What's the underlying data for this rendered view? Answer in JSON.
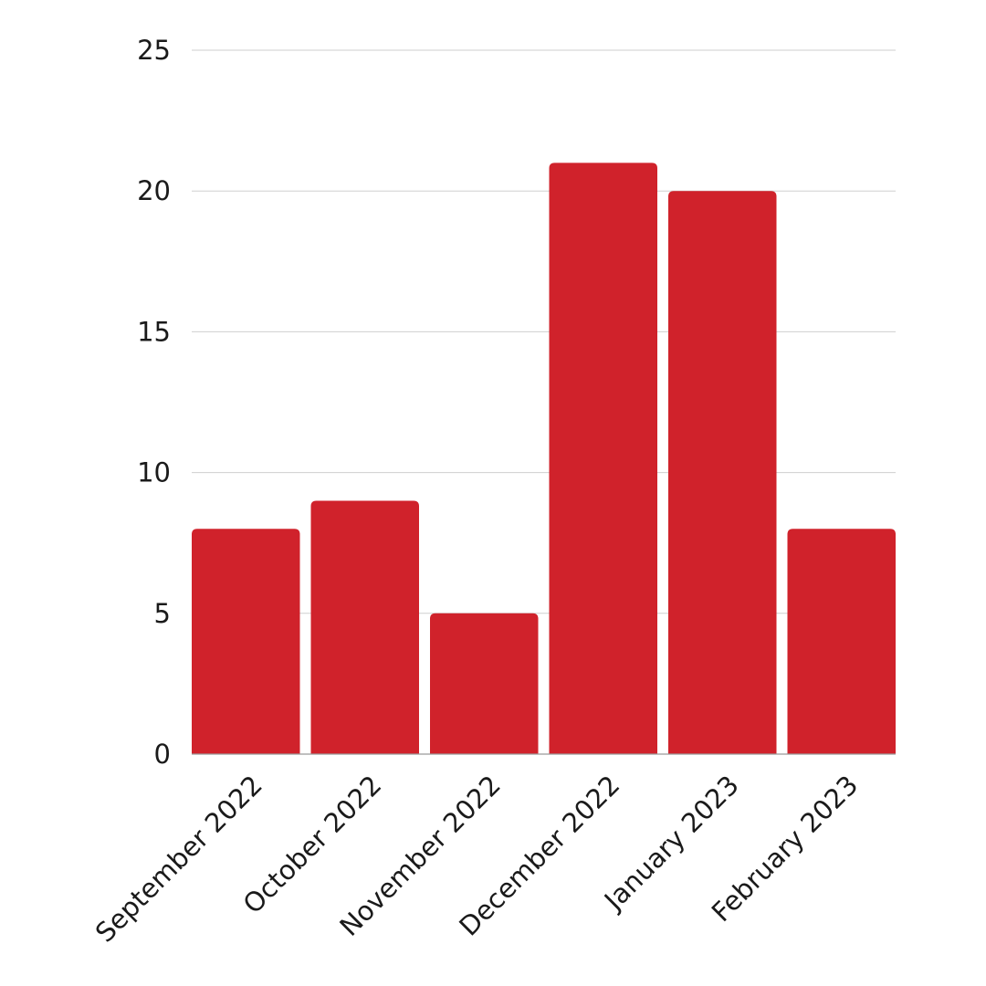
{
  "chart_data": {
    "type": "bar",
    "title": "",
    "xlabel": "",
    "ylabel": "",
    "categories": [
      "September 2022",
      "October 2022",
      "November 2022",
      "December 2022",
      "January 2023",
      "February 2023"
    ],
    "values": [
      8,
      9,
      5,
      21,
      20,
      8
    ],
    "ylim": [
      0,
      25
    ],
    "yticks": [
      0,
      5,
      10,
      15,
      20,
      25
    ],
    "grid": true,
    "legend": "none",
    "colors": {
      "bar": "#D0222B",
      "grid": "#CFCFCF",
      "text": "#1A1A1A",
      "background": "#FFFFFF"
    }
  }
}
